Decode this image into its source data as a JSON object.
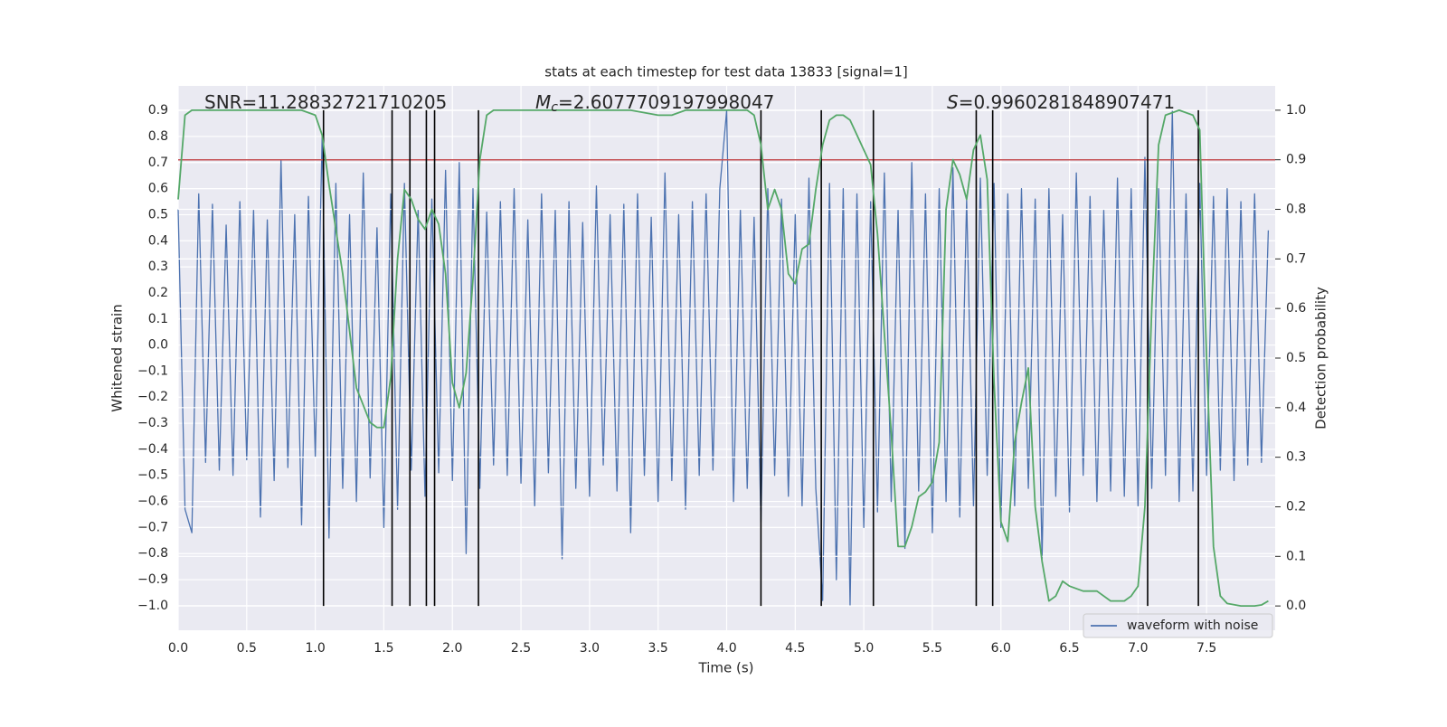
{
  "chart_data": {
    "type": "line",
    "title": "stats at each timestep for test data 13833 [signal=1]",
    "xlabel": "Time (s)",
    "ylabel": "Whitened strain",
    "y2label": "Detection probability",
    "annotations": [
      {
        "text": "SNR=11.28832721710205"
      },
      {
        "symbol": "M",
        "subscript": "c",
        "text": "=2.6077709197998047"
      },
      {
        "symbol": "S",
        "text": "=0.9960281848907471"
      }
    ],
    "xlim": [
      0,
      8
    ],
    "ylim": [
      -1.094,
      0.994
    ],
    "y2lim": [
      -0.049,
      1.049
    ],
    "xticks": [
      {
        "value": 0,
        "label": "0.0"
      },
      0.5,
      {
        "value": 1,
        "label": "1.0"
      },
      1.5,
      {
        "value": 2,
        "label": "2.0"
      },
      2.5,
      {
        "value": 3,
        "label": "3.0"
      },
      3.5,
      {
        "value": 4,
        "label": "4.0"
      },
      4.5,
      {
        "value": 5,
        "label": "5.0"
      },
      5.5,
      {
        "value": 6,
        "label": "6.0"
      },
      6.5,
      {
        "value": 7,
        "label": "7.0"
      },
      7.5
    ],
    "yticks": [
      0.9,
      0.8,
      0.7,
      0.6,
      0.5,
      0.4,
      0.3,
      0.2,
      0.1,
      {
        "value": 0,
        "label": "0.0"
      },
      {
        "value": -0.1,
        "label": "−0.1"
      },
      {
        "value": -0.2,
        "label": "−0.2"
      },
      {
        "value": -0.3,
        "label": "−0.3"
      },
      {
        "value": -0.4,
        "label": "−0.4"
      },
      {
        "value": -0.5,
        "label": "−0.5"
      },
      {
        "value": -0.6,
        "label": "−0.6"
      },
      {
        "value": -0.7,
        "label": "−0.7"
      },
      {
        "value": -0.8,
        "label": "−0.8"
      },
      {
        "value": -0.9,
        "label": "−0.9"
      },
      {
        "value": -1,
        "label": "−1.0"
      }
    ],
    "y2ticks": [
      {
        "value": 1,
        "label": "1.0"
      },
      0.9,
      0.8,
      0.7,
      0.6,
      0.5,
      0.4,
      0.3,
      0.2,
      0.1,
      {
        "value": 0,
        "label": "0.0"
      }
    ],
    "grid": true,
    "legend": "lower right",
    "series": [
      {
        "name": "waveform with noise",
        "color": "#4c72b0",
        "x": [
          0,
          0.05,
          0.1,
          0.15,
          0.2,
          0.25,
          0.3,
          0.35,
          0.4,
          0.45,
          0.5,
          0.55,
          0.6,
          0.65,
          0.7,
          0.75,
          0.8,
          0.85,
          0.9,
          0.95,
          1,
          1.05,
          1.1,
          1.15,
          1.2,
          1.25,
          1.3,
          1.35,
          1.4,
          1.45,
          1.5,
          1.55,
          1.6,
          1.65,
          1.7,
          1.75,
          1.8,
          1.85,
          1.9,
          1.95,
          2,
          2.05,
          2.1,
          2.15,
          2.2,
          2.25,
          2.3,
          2.35,
          2.4,
          2.45,
          2.5,
          2.55,
          2.6,
          2.65,
          2.7,
          2.75,
          2.8,
          2.85,
          2.9,
          2.95,
          3,
          3.05,
          3.1,
          3.15,
          3.2,
          3.25,
          3.3,
          3.35,
          3.4,
          3.45,
          3.5,
          3.55,
          3.6,
          3.65,
          3.7,
          3.75,
          3.8,
          3.85,
          3.9,
          3.95,
          4,
          4.05,
          4.1,
          4.15,
          4.2,
          4.25,
          4.3,
          4.35,
          4.4,
          4.45,
          4.5,
          4.55,
          4.6,
          4.65,
          4.7,
          4.75,
          4.8,
          4.85,
          4.9,
          4.95,
          5,
          5.05,
          5.1,
          5.15,
          5.2,
          5.25,
          5.3,
          5.35,
          5.4,
          5.45,
          5.5,
          5.55,
          5.6,
          5.65,
          5.7,
          5.75,
          5.8,
          5.85,
          5.9,
          5.95,
          6,
          6.05,
          6.1,
          6.15,
          6.2,
          6.25,
          6.3,
          6.35,
          6.4,
          6.45,
          6.5,
          6.55,
          6.6,
          6.65,
          6.7,
          6.75,
          6.8,
          6.85,
          6.9,
          6.95,
          7,
          7.05,
          7.1,
          7.15,
          7.2,
          7.25,
          7.3,
          7.35,
          7.4,
          7.45,
          7.5,
          7.55,
          7.6,
          7.65,
          7.7,
          7.75,
          7.8,
          7.85,
          7.9,
          7.95
        ],
        "values": [
          0.52,
          -0.63,
          -0.72,
          0.58,
          -0.45,
          0.54,
          -0.48,
          0.46,
          -0.5,
          0.55,
          -0.44,
          0.52,
          -0.66,
          0.48,
          -0.52,
          0.71,
          -0.47,
          0.5,
          -0.69,
          0.57,
          -0.43,
          0.8,
          -0.74,
          0.62,
          -0.55,
          0.5,
          -0.6,
          0.66,
          -0.51,
          0.45,
          -0.7,
          0.58,
          -0.63,
          0.62,
          -0.48,
          0.52,
          -0.58,
          0.56,
          -0.49,
          0.67,
          -0.52,
          0.7,
          -0.8,
          0.6,
          -0.55,
          0.51,
          -0.46,
          0.55,
          -0.5,
          0.6,
          -0.53,
          0.48,
          -0.62,
          0.58,
          -0.49,
          0.52,
          -0.82,
          0.55,
          -0.55,
          0.47,
          -0.58,
          0.61,
          -0.46,
          0.5,
          -0.56,
          0.54,
          -0.72,
          0.58,
          -0.5,
          0.49,
          -0.6,
          0.66,
          -0.52,
          0.5,
          -0.63,
          0.55,
          -0.5,
          0.58,
          -0.48,
          0.6,
          0.9,
          -0.6,
          0.52,
          -0.55,
          0.49,
          -0.68,
          0.6,
          -0.5,
          0.56,
          -0.58,
          0.5,
          -0.62,
          0.64,
          -0.55,
          -0.98,
          0.62,
          -0.9,
          0.6,
          -1.0,
          0.58,
          -0.7,
          0.55,
          -0.64,
          0.66,
          -0.6,
          0.52,
          -0.78,
          0.7,
          -0.56,
          0.58,
          -0.72,
          0.6,
          -0.6,
          0.68,
          -0.66,
          0.56,
          -0.62,
          0.64,
          -0.5,
          0.62,
          -0.7,
          0.58,
          -0.62,
          0.6,
          -0.55,
          0.56,
          -0.82,
          0.6,
          -0.58,
          0.5,
          -0.64,
          0.66,
          -0.5,
          0.57,
          -0.6,
          0.52,
          -0.56,
          0.64,
          -0.58,
          0.6,
          -0.62,
          0.72,
          -0.55,
          0.6,
          -0.5,
          0.9,
          -0.6,
          0.58,
          -0.56,
          0.62,
          -0.5,
          0.57,
          -0.48,
          0.6,
          -0.52,
          0.55,
          -0.46,
          0.58,
          -0.45,
          0.44
        ]
      },
      {
        "color": "#55a868",
        "axis": "y2",
        "x": [
          0,
          0.05,
          0.1,
          0.2,
          0.3,
          0.4,
          0.5,
          0.6,
          0.7,
          0.8,
          0.9,
          1.0,
          1.05,
          1.1,
          1.2,
          1.3,
          1.4,
          1.45,
          1.5,
          1.55,
          1.6,
          1.65,
          1.7,
          1.75,
          1.8,
          1.85,
          1.9,
          1.95,
          2.0,
          2.05,
          2.1,
          2.15,
          2.2,
          2.25,
          2.3,
          2.5,
          2.7,
          2.9,
          3.1,
          3.3,
          3.5,
          3.6,
          3.7,
          3.9,
          4.1,
          4.15,
          4.2,
          4.25,
          4.3,
          4.35,
          4.4,
          4.45,
          4.5,
          4.55,
          4.6,
          4.65,
          4.7,
          4.75,
          4.8,
          4.85,
          4.9,
          4.95,
          5.0,
          5.05,
          5.1,
          5.15,
          5.2,
          5.25,
          5.3,
          5.35,
          5.4,
          5.45,
          5.5,
          5.55,
          5.6,
          5.65,
          5.7,
          5.75,
          5.8,
          5.85,
          5.9,
          5.95,
          6.0,
          6.05,
          6.1,
          6.15,
          6.2,
          6.25,
          6.3,
          6.35,
          6.4,
          6.45,
          6.5,
          6.6,
          6.7,
          6.8,
          6.9,
          6.95,
          7.0,
          7.05,
          7.1,
          7.15,
          7.2,
          7.3,
          7.4,
          7.45,
          7.5,
          7.55,
          7.6,
          7.65,
          7.75,
          7.85,
          7.9,
          7.95
        ],
        "values": [
          0.82,
          0.99,
          1.0,
          1.0,
          1.0,
          1.0,
          1.0,
          1.0,
          1.0,
          1.0,
          1.0,
          0.99,
          0.95,
          0.85,
          0.67,
          0.44,
          0.37,
          0.36,
          0.36,
          0.46,
          0.7,
          0.84,
          0.82,
          0.78,
          0.76,
          0.8,
          0.77,
          0.67,
          0.45,
          0.4,
          0.47,
          0.66,
          0.9,
          0.99,
          1.0,
          1.0,
          1.0,
          1.0,
          1.0,
          1.0,
          0.99,
          0.99,
          1.0,
          1.0,
          1.0,
          1.0,
          0.99,
          0.93,
          0.8,
          0.84,
          0.8,
          0.67,
          0.65,
          0.72,
          0.73,
          0.84,
          0.93,
          0.98,
          0.99,
          0.99,
          0.98,
          0.95,
          0.92,
          0.89,
          0.75,
          0.55,
          0.35,
          0.12,
          0.12,
          0.16,
          0.22,
          0.23,
          0.25,
          0.33,
          0.8,
          0.9,
          0.87,
          0.82,
          0.92,
          0.95,
          0.86,
          0.45,
          0.17,
          0.13,
          0.33,
          0.41,
          0.48,
          0.2,
          0.09,
          0.01,
          0.02,
          0.05,
          0.04,
          0.03,
          0.03,
          0.01,
          0.01,
          0.02,
          0.04,
          0.2,
          0.6,
          0.93,
          0.99,
          1.0,
          0.99,
          0.96,
          0.5,
          0.12,
          0.02,
          0.005,
          0.0,
          0.0,
          0.002,
          0.01
        ]
      }
    ],
    "hline": {
      "value": 0.9,
      "axis": "y2",
      "color": "#c44e52"
    },
    "vlines": {
      "x": [
        1.06,
        1.56,
        1.69,
        1.81,
        1.87,
        2.19,
        4.25,
        4.69,
        5.07,
        5.82,
        5.94,
        7.07,
        7.44
      ],
      "ymin": 0,
      "ymax": 1,
      "axis": "y2",
      "color": "#000000"
    }
  }
}
